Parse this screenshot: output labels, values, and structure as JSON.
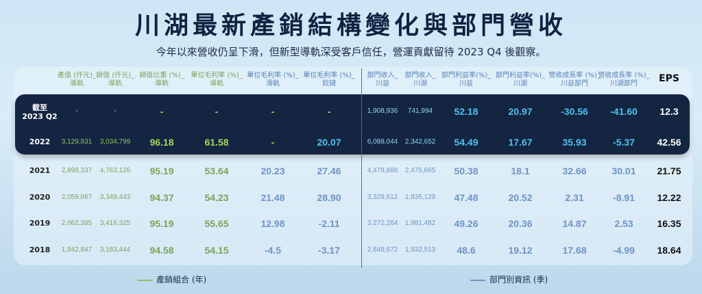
{
  "title": "川湖最新產銷結構變化與部門營收",
  "subtitle": "今年以來營收仍呈下滑，但新型導軌深受客戶信任，營運貢獻留待 2023 Q4 後觀察。",
  "colors": {
    "green": "#8ac45a",
    "green_dark": "#6a9a46",
    "blue": "#6f93c6",
    "cyan": "#4fc0f0",
    "dark_band": "#132540"
  },
  "legend": {
    "left": "產銷組合 (年)",
    "right": "部門別資訊 (季)"
  },
  "chart_data": {
    "type": "table",
    "title": "川湖最新產銷結構變化與部門營收",
    "columns": [
      {
        "label": "產值 (仟元)_\n導軌",
        "group": "green"
      },
      {
        "label": "銷值 (仟元)_\n導軌",
        "group": "green"
      },
      {
        "label": "銷值比重 (%)_\n導軌",
        "group": "green"
      },
      {
        "label": "單位毛利率 (%)_\n導軌",
        "group": "green"
      },
      {
        "label": "單位毛利率 (%)_\n滑軌",
        "group": "blue"
      },
      {
        "label": "單位毛利率 (%)_\n鉸鏈",
        "group": "blue"
      },
      {
        "label": "部門收入_\n川益",
        "group": "blue"
      },
      {
        "label": "部門收入_\n川湖",
        "group": "blue"
      },
      {
        "label": "部門利益率(%)_\n川益",
        "group": "blue"
      },
      {
        "label": "部門利益率(%)_\n川湖",
        "group": "blue"
      },
      {
        "label": "營收成長率 (%)_\n川益部門",
        "group": "blue"
      },
      {
        "label": "營收成長率 (%)_\n川湖部門",
        "group": "blue"
      },
      {
        "label": "EPS",
        "group": "eps"
      }
    ],
    "rows": [
      {
        "label": "截至\n2023 Q2",
        "dark": true,
        "values": [
          "-",
          "-",
          "-",
          "-",
          "-",
          "-",
          "1,908,936",
          "741,994",
          "52.18",
          "20.97",
          "-30.56",
          "-41.60",
          "12.3"
        ]
      },
      {
        "label": "2022",
        "dark": true,
        "values": [
          "3,129,831",
          "3,034,799",
          "96.18",
          "61.58",
          "-",
          "20.07",
          "6,088,044",
          "2,342,652",
          "54.49",
          "17.67",
          "35.93",
          "-5.37",
          "42.56"
        ]
      },
      {
        "label": "2021",
        "dark": false,
        "values": [
          "2,899,337",
          "4,763,126",
          "95.19",
          "53.64",
          "20.23",
          "27.46",
          "4,478,888",
          "2,475,665",
          "50.38",
          "18.1",
          "32.66",
          "30.01",
          "21.75"
        ]
      },
      {
        "label": "2020",
        "dark": false,
        "values": [
          "2,059,067",
          "3,349,443",
          "94.37",
          "54.23",
          "21.48",
          "28.90",
          "3,329,612",
          "1,835,129",
          "47.48",
          "20.52",
          "2.31",
          "-8.91",
          "12.22"
        ]
      },
      {
        "label": "2019",
        "dark": false,
        "values": [
          "2,062,395",
          "3,416,325",
          "95.19",
          "55.65",
          "12.98",
          "-2.11",
          "3,272,264",
          "1,981,482",
          "49.26",
          "20.36",
          "14.87",
          "2.53",
          "16.35"
        ]
      },
      {
        "label": "2018",
        "dark": false,
        "values": [
          "1,942,847",
          "3,183,444",
          "94.58",
          "54.15",
          "-4.5",
          "-3.17",
          "2,848,672",
          "1,932,513",
          "48.6",
          "19.12",
          "17.68",
          "-4.99",
          "18.64"
        ]
      }
    ]
  }
}
